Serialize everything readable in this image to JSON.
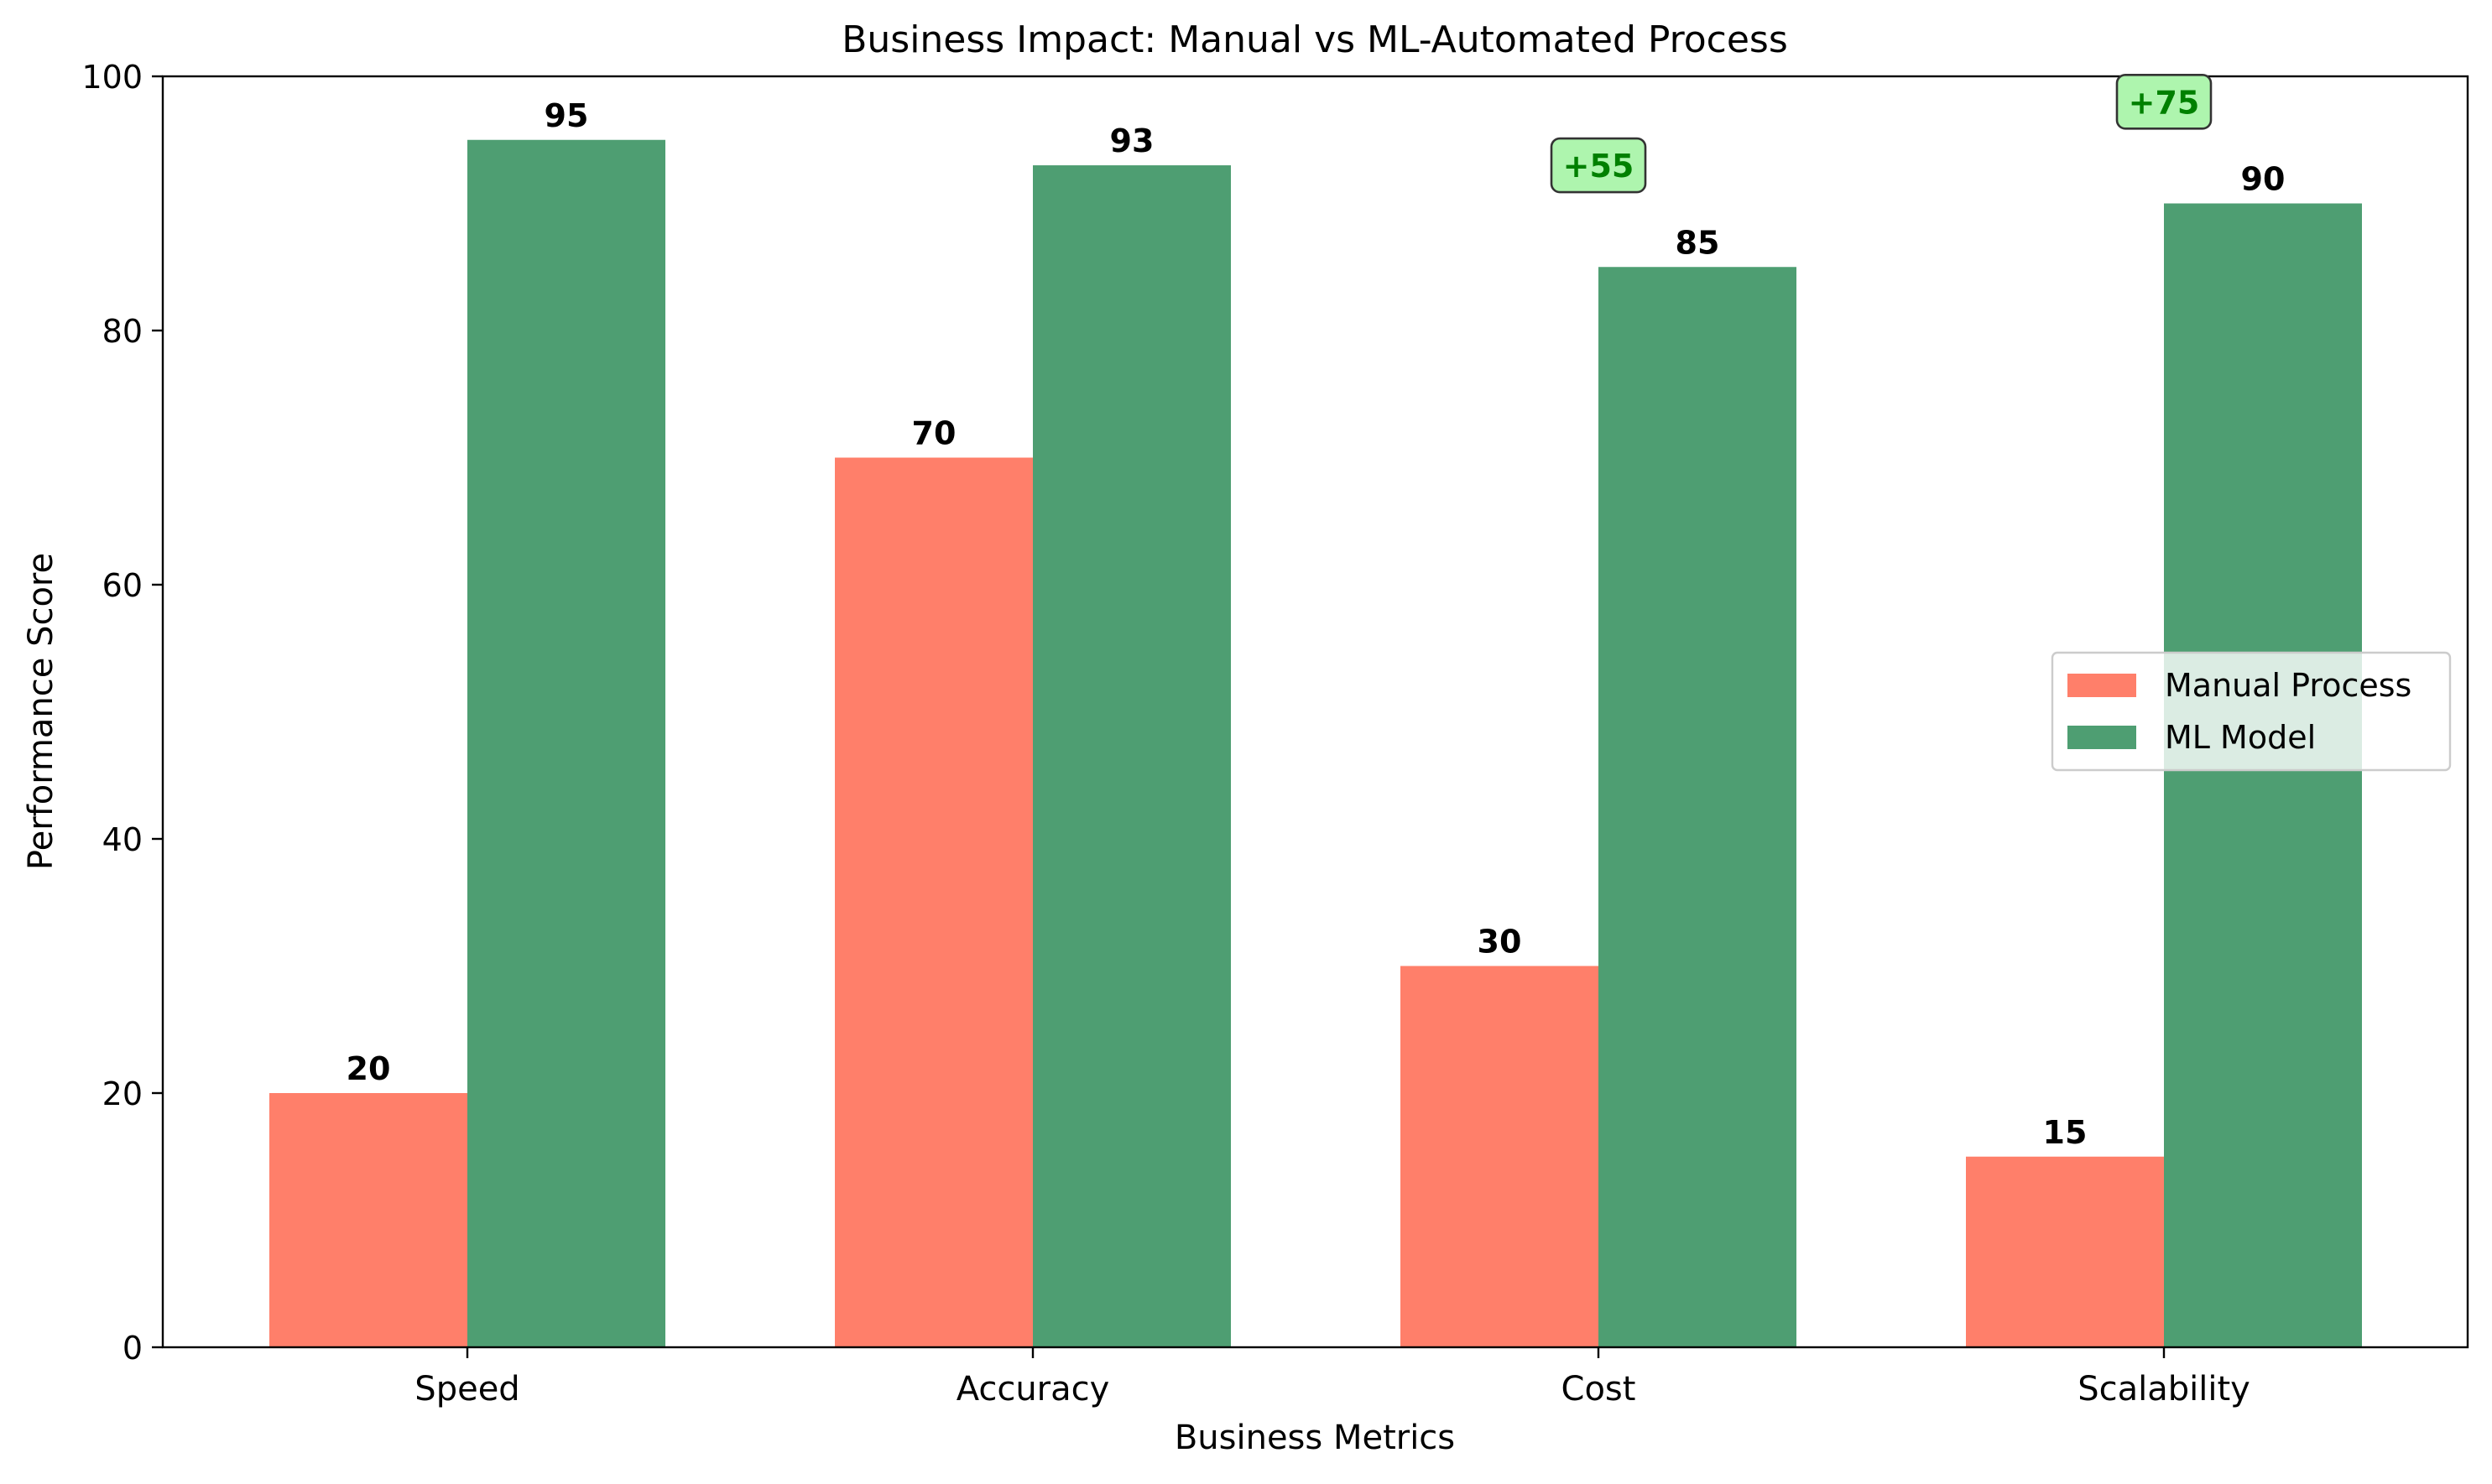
{
  "chart_data": {
    "type": "bar",
    "title": "Business Impact: Manual vs ML-Automated Process",
    "xlabel": "Business Metrics",
    "ylabel": "Performance Score",
    "categories": [
      "Speed",
      "Accuracy",
      "Cost",
      "Scalability"
    ],
    "ylim": [
      0,
      100
    ],
    "yticks": [
      0,
      20,
      40,
      60,
      80,
      100
    ],
    "grid": false,
    "legend_position": "center-right",
    "series": [
      {
        "name": "Manual Process",
        "values": [
          20,
          70,
          30,
          15
        ],
        "color": "#FF7F6A"
      },
      {
        "name": "ML Model",
        "values": [
          95,
          93,
          85,
          90
        ],
        "color": "#4E9E72"
      }
    ],
    "data_labels": {
      "Manual Process": [
        "20",
        "70",
        "30",
        "15"
      ],
      "ML Model": [
        "95",
        "93",
        "85",
        "90"
      ]
    },
    "annotations": [
      {
        "category": "Cost",
        "text": "+55",
        "y": 93,
        "color": "#008000",
        "background": "#AEF5AE"
      },
      {
        "category": "Scalability",
        "text": "+75",
        "y": 98,
        "color": "#008000",
        "background": "#AEF5AE"
      }
    ]
  }
}
